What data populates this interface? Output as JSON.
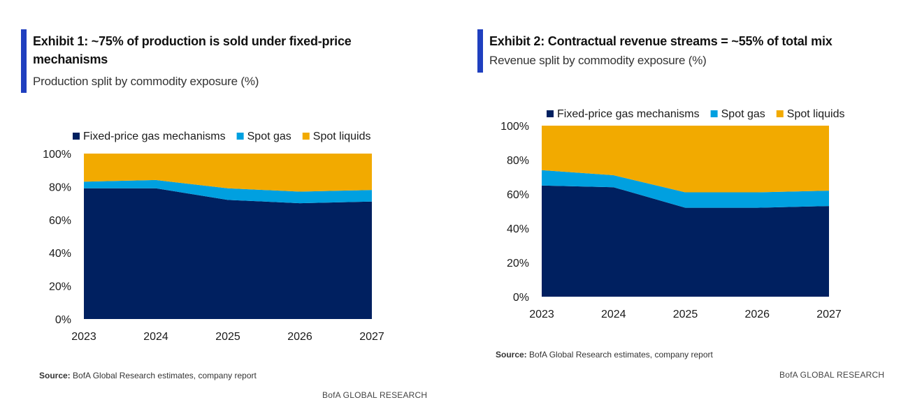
{
  "exhibits": [
    {
      "title": "Exhibit 1: ~75% of production is sold under fixed-price mechanisms",
      "subtitle": "Production split by commodity exposure (%)",
      "source_label": "Source:",
      "source_text": "BofA Global Research estimates, company report",
      "footer": "BofA GLOBAL RESEARCH"
    },
    {
      "title": "Exhibit 2: Contractual revenue streams = ~55% of total mix",
      "subtitle": "Revenue split by commodity exposure (%)",
      "source_label": "Source:",
      "source_text": "BofA Global Research estimates, company report",
      "footer": "BofA GLOBAL RESEARCH"
    }
  ],
  "colors": {
    "accent": "#1f3fbf",
    "fixed": "#002060",
    "spot_gas": "#00a0e0",
    "spot_liquids": "#f2aa00"
  },
  "chart_data": [
    {
      "type": "area",
      "stacked": true,
      "x": [
        "2023",
        "2024",
        "2025",
        "2026",
        "2027"
      ],
      "series": [
        {
          "name": "Fixed-price gas mechanisms",
          "values": [
            79,
            79,
            72,
            70,
            71
          ]
        },
        {
          "name": "Spot gas",
          "values": [
            4,
            5,
            7,
            7,
            7
          ]
        },
        {
          "name": "Spot liquids",
          "values": [
            17,
            16,
            21,
            23,
            22
          ]
        }
      ],
      "ylim": [
        0,
        100
      ],
      "yticks": [
        "0%",
        "20%",
        "40%",
        "60%",
        "80%",
        "100%"
      ],
      "legend_position": "top",
      "grid": false
    },
    {
      "type": "area",
      "stacked": true,
      "x": [
        "2023",
        "2024",
        "2025",
        "2026",
        "2027"
      ],
      "series": [
        {
          "name": "Fixed-price gas mechanisms",
          "values": [
            65,
            64,
            52,
            52,
            53
          ]
        },
        {
          "name": "Spot gas",
          "values": [
            9,
            7,
            9,
            9,
            9
          ]
        },
        {
          "name": "Spot liquids",
          "values": [
            26,
            29,
            39,
            39,
            38
          ]
        }
      ],
      "ylim": [
        0,
        100
      ],
      "yticks": [
        "0%",
        "20%",
        "40%",
        "60%",
        "80%",
        "100%"
      ],
      "legend_position": "top",
      "grid": false
    }
  ]
}
